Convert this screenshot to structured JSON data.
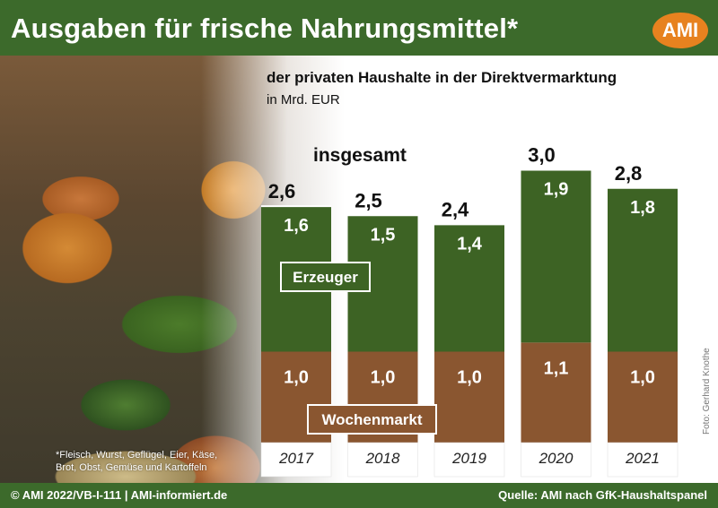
{
  "header": {
    "title": "Ausgaben für frische Nahrungsmittel*",
    "logo_text": "AMI"
  },
  "chart_data": {
    "type": "bar",
    "stacked": true,
    "title": "der privaten Haushalte in der Direktvermarktung",
    "unit": "in Mrd. EUR",
    "total_label": "insgesamt",
    "categories": [
      "2017",
      "2018",
      "2019",
      "2020",
      "2021"
    ],
    "series": [
      {
        "name": "Wochenmarkt",
        "values": [
          1.0,
          1.0,
          1.0,
          1.1,
          1.0
        ],
        "color": "#8a5630"
      },
      {
        "name": "Erzeuger",
        "values": [
          1.6,
          1.5,
          1.4,
          1.9,
          1.8
        ],
        "color": "#3d6324"
      }
    ],
    "totals": [
      2.6,
      2.5,
      2.4,
      3.0,
      2.8
    ],
    "decimal_separator": ",",
    "ylim": [
      0,
      3.0
    ],
    "grid": false
  },
  "footnote": "*Fleisch, Wurst, Geflügel, Eier, Käse, Brot, Obst, Gemüse und Kartoffeln",
  "photo_credit": "Foto: Gerhard Knothe",
  "footer": {
    "left": "© AMI 2022/VB-I-111 | AMI-informiert.de",
    "right": "Quelle: AMI nach GfK-Haushaltspanel"
  },
  "colors": {
    "brand_green": "#3c6a2b",
    "brand_orange": "#e7821f",
    "year_band": "#ffffff"
  }
}
